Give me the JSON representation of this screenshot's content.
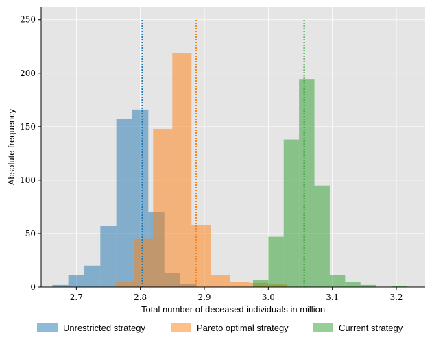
{
  "chart_data": {
    "type": "histogram",
    "xlabel": "Total number of deceased individuals in million",
    "ylabel": "Absolute frequency",
    "xlim": [
      2.645,
      3.245
    ],
    "ylim": [
      0,
      262
    ],
    "xticks": [
      "2.7",
      "2.8",
      "2.9",
      "3.0",
      "3.1",
      "3.2"
    ],
    "yticks": [
      "0",
      "50",
      "100",
      "150",
      "200",
      "250"
    ],
    "grid": true,
    "legend_position": "bottom",
    "series": [
      {
        "name": "Unrestricted strategy",
        "color": "#1f77b4",
        "bins": [
          {
            "x0": 2.6625,
            "x1": 2.6875,
            "v": 2
          },
          {
            "x0": 2.6875,
            "x1": 2.7125,
            "v": 11
          },
          {
            "x0": 2.7125,
            "x1": 2.7375,
            "v": 20
          },
          {
            "x0": 2.7375,
            "x1": 2.7625,
            "v": 57
          },
          {
            "x0": 2.7625,
            "x1": 2.7875,
            "v": 157
          },
          {
            "x0": 2.7875,
            "x1": 2.8125,
            "v": 166
          },
          {
            "x0": 2.8125,
            "x1": 2.8375,
            "v": 70
          },
          {
            "x0": 2.8375,
            "x1": 2.8625,
            "v": 13
          },
          {
            "x0": 2.8625,
            "x1": 2.8875,
            "v": 3
          }
        ],
        "mean": 2.803
      },
      {
        "name": "Pareto optimal strategy",
        "color": "#ff7f0e",
        "bins": [
          {
            "x0": 2.76,
            "x1": 2.79,
            "v": 5
          },
          {
            "x0": 2.79,
            "x1": 2.82,
            "v": 45
          },
          {
            "x0": 2.82,
            "x1": 2.85,
            "v": 148
          },
          {
            "x0": 2.85,
            "x1": 2.88,
            "v": 219
          },
          {
            "x0": 2.88,
            "x1": 2.91,
            "v": 58
          },
          {
            "x0": 2.91,
            "x1": 2.94,
            "v": 11
          },
          {
            "x0": 2.94,
            "x1": 2.97,
            "v": 5
          },
          {
            "x0": 2.97,
            "x1": 3.0,
            "v": 4
          },
          {
            "x0": 3.0,
            "x1": 3.03,
            "v": 3
          }
        ],
        "mean": 2.887
      },
      {
        "name": "Current strategy",
        "color": "#2ca02c",
        "bins": [
          {
            "x0": 2.976,
            "x1": 3.0,
            "v": 7
          },
          {
            "x0": 3.0,
            "x1": 3.024,
            "v": 47
          },
          {
            "x0": 3.024,
            "x1": 3.048,
            "v": 138
          },
          {
            "x0": 3.048,
            "x1": 3.072,
            "v": 194
          },
          {
            "x0": 3.072,
            "x1": 3.096,
            "v": 95
          },
          {
            "x0": 3.096,
            "x1": 3.12,
            "v": 11
          },
          {
            "x0": 3.12,
            "x1": 3.144,
            "v": 5
          },
          {
            "x0": 3.144,
            "x1": 3.168,
            "v": 2
          },
          {
            "x0": 3.168,
            "x1": 3.192,
            "v": 0
          },
          {
            "x0": 3.192,
            "x1": 3.216,
            "v": 1
          }
        ],
        "mean": 3.056
      }
    ]
  }
}
